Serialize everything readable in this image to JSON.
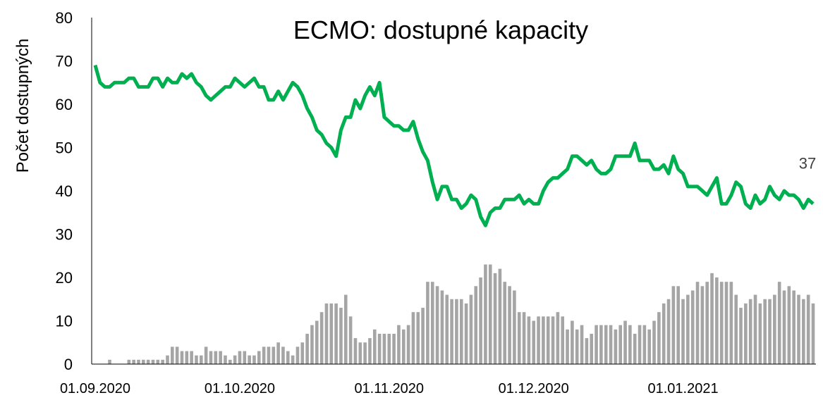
{
  "chart_data": {
    "type": "line_bar",
    "title": "ECMO: dostupné kapacity",
    "ylabel": "Počet dostupných",
    "x": [
      "01.09.2020",
      "02.09.2020",
      "03.09.2020",
      "04.09.2020",
      "05.09.2020",
      "06.09.2020",
      "07.09.2020",
      "08.09.2020",
      "09.09.2020",
      "10.09.2020",
      "11.09.2020",
      "12.09.2020",
      "13.09.2020",
      "14.09.2020",
      "15.09.2020",
      "16.09.2020",
      "17.09.2020",
      "18.09.2020",
      "19.09.2020",
      "20.09.2020",
      "21.09.2020",
      "22.09.2020",
      "23.09.2020",
      "24.09.2020",
      "25.09.2020",
      "26.09.2020",
      "27.09.2020",
      "28.09.2020",
      "29.09.2020",
      "30.09.2020",
      "01.10.2020",
      "02.10.2020",
      "03.10.2020",
      "04.10.2020",
      "05.10.2020",
      "06.10.2020",
      "07.10.2020",
      "08.10.2020",
      "09.10.2020",
      "10.10.2020",
      "11.10.2020",
      "12.10.2020",
      "13.10.2020",
      "14.10.2020",
      "15.10.2020",
      "16.10.2020",
      "17.10.2020",
      "18.10.2020",
      "19.10.2020",
      "20.10.2020",
      "21.10.2020",
      "22.10.2020",
      "23.10.2020",
      "24.10.2020",
      "25.10.2020",
      "26.10.2020",
      "27.10.2020",
      "28.10.2020",
      "29.10.2020",
      "30.10.2020",
      "31.10.2020",
      "01.11.2020",
      "02.11.2020",
      "03.11.2020",
      "04.11.2020",
      "05.11.2020",
      "06.11.2020",
      "07.11.2020",
      "08.11.2020",
      "09.11.2020",
      "10.11.2020",
      "11.11.2020",
      "12.11.2020",
      "13.11.2020",
      "14.11.2020",
      "15.11.2020",
      "16.11.2020",
      "17.11.2020",
      "18.11.2020",
      "19.11.2020",
      "20.11.2020",
      "21.11.2020",
      "22.11.2020",
      "23.11.2020",
      "24.11.2020",
      "25.11.2020",
      "26.11.2020",
      "27.11.2020",
      "28.11.2020",
      "29.11.2020",
      "30.11.2020",
      "01.12.2020",
      "02.12.2020",
      "03.12.2020",
      "04.12.2020",
      "05.12.2020",
      "06.12.2020",
      "07.12.2020",
      "08.12.2020",
      "09.12.2020",
      "10.12.2020",
      "11.12.2020",
      "12.12.2020",
      "13.12.2020",
      "14.12.2020",
      "15.12.2020",
      "16.12.2020",
      "17.12.2020",
      "18.12.2020",
      "19.12.2020",
      "20.12.2020",
      "21.12.2020",
      "22.12.2020",
      "23.12.2020",
      "24.12.2020",
      "25.12.2020",
      "26.12.2020",
      "27.12.2020",
      "28.12.2020",
      "29.12.2020",
      "30.12.2020",
      "31.12.2020",
      "01.01.2021",
      "02.01.2021",
      "03.01.2021",
      "04.01.2021",
      "05.01.2021",
      "06.01.2021",
      "07.01.2021",
      "08.01.2021",
      "09.01.2021",
      "10.01.2021",
      "11.01.2021",
      "12.01.2021",
      "13.01.2021",
      "14.01.2021",
      "15.01.2021",
      "16.01.2021",
      "17.01.2021",
      "18.01.2021",
      "19.01.2021",
      "20.01.2021",
      "21.01.2021",
      "22.01.2021",
      "23.01.2021",
      "24.01.2021",
      "25.01.2021",
      "26.01.2021",
      "27.01.2021",
      "28.01.2021"
    ],
    "xticks": [
      "01.09.2020",
      "01.10.2020",
      "01.11.2020",
      "01.12.2020",
      "01.01.2021"
    ],
    "series": [
      {
        "kind": "line",
        "color": "#00b050",
        "values": [
          69,
          65,
          64,
          64,
          65,
          65,
          65,
          66,
          66,
          64,
          64,
          64,
          66,
          66,
          64,
          66,
          65,
          65,
          67,
          66,
          67,
          65,
          64,
          62,
          61,
          62,
          63,
          64,
          64,
          66,
          65,
          64,
          65,
          66,
          64,
          64,
          61,
          61,
          63,
          61,
          63,
          65,
          64,
          62,
          59,
          57,
          54,
          53,
          51,
          50,
          48,
          54,
          57,
          57,
          61,
          59,
          62,
          64,
          62,
          65,
          57,
          56,
          55,
          55,
          54,
          54,
          56,
          52,
          49,
          47,
          42,
          38,
          41,
          41,
          38,
          38,
          36,
          37,
          39,
          38,
          34,
          32,
          35,
          36,
          36,
          38,
          38,
          38,
          39,
          37,
          38,
          37,
          37,
          40,
          42,
          43,
          43,
          44,
          45,
          48,
          48,
          47,
          46,
          47,
          45,
          44,
          44,
          45,
          48,
          48,
          48,
          48,
          51,
          47,
          47,
          47,
          45,
          45,
          46,
          44,
          48,
          45,
          44,
          41,
          41,
          41,
          40,
          39,
          41,
          43,
          37,
          37,
          39,
          42,
          41,
          37,
          36,
          39,
          37,
          38,
          41,
          39,
          38,
          40,
          39,
          39,
          38,
          36,
          38,
          37
        ]
      },
      {
        "kind": "bar",
        "color": "#a5a5a5",
        "values": [
          0,
          0,
          0,
          1,
          0,
          0,
          0,
          1,
          1,
          1,
          1,
          1,
          1,
          1,
          1,
          2,
          4,
          4,
          3,
          3,
          3,
          2,
          2,
          4,
          3,
          3,
          3,
          2,
          1,
          2,
          3,
          3,
          2,
          2,
          3,
          4,
          4,
          4,
          5,
          4,
          3,
          2,
          4,
          5,
          7,
          9,
          10,
          12,
          14,
          14,
          14,
          13,
          16,
          11,
          6,
          5,
          5,
          6,
          8,
          7,
          7,
          7,
          7,
          9,
          8,
          9,
          12,
          12,
          13,
          19,
          19,
          18,
          17,
          16,
          15,
          15,
          15,
          14,
          16,
          18,
          20,
          23,
          23,
          21,
          22,
          19,
          18,
          17,
          12,
          12,
          11,
          10,
          11,
          11,
          11,
          11,
          12,
          11,
          8,
          10,
          8,
          9,
          6,
          7,
          9,
          9,
          9,
          9,
          8,
          9,
          10,
          9,
          7,
          9,
          9,
          8,
          10,
          12,
          14,
          15,
          18,
          18,
          15,
          16,
          17,
          19,
          18,
          19,
          21,
          20,
          19,
          19,
          19,
          16,
          13,
          14,
          15,
          16,
          14,
          15,
          15,
          16,
          19,
          17,
          18,
          17,
          16,
          15,
          16,
          14
        ]
      }
    ],
    "ylim": [
      0,
      80
    ],
    "yticks": [
      0,
      10,
      20,
      30,
      40,
      50,
      60,
      70,
      80
    ]
  }
}
